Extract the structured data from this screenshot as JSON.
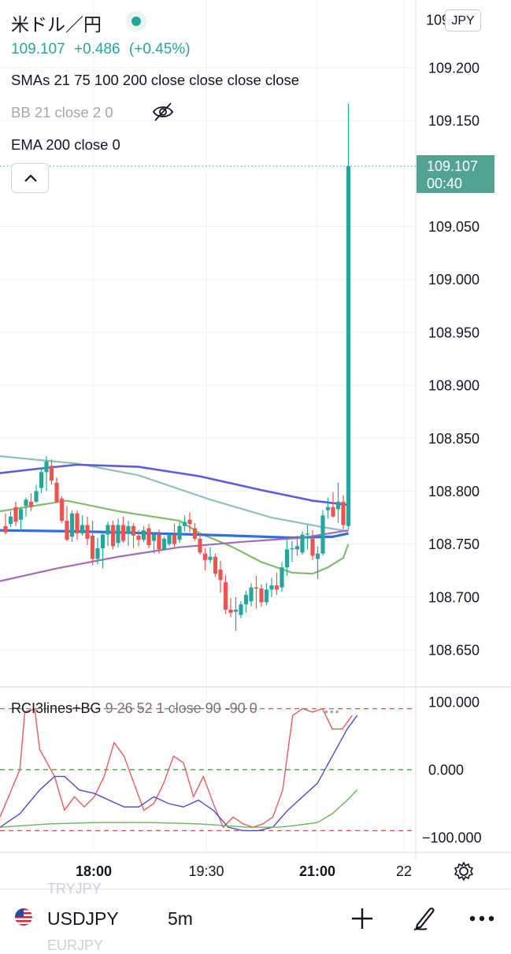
{
  "header": {
    "symbol_title": "米ドル／円",
    "price": "109.107",
    "change": "+0.486",
    "change_pct": "(+0.45%)",
    "currency_badge": "JPY"
  },
  "indicators": {
    "sma": "SMAs 21 75 100 200 close close close close",
    "bb": "BB 21 close 2 0",
    "ema": "EMA 200 close 0"
  },
  "rci_legend": {
    "name": "RCI3lines+BG",
    "params": "9 26 52 1 close 90 -90 0"
  },
  "last_price_tag": {
    "price": "109.107",
    "countdown": "00:40"
  },
  "bottom_bar": {
    "symbol": "USDJPY",
    "interval": "5m",
    "ghost_above": "TRYJPY",
    "ghost_below": "EURJPY"
  },
  "colors": {
    "up": "#26a69a",
    "down": "#ef5350",
    "sma_blue": "#2f6fde",
    "sma_purple": "#5b5ce0",
    "sma_teal": "#8fc1ba",
    "sma_green": "#82bb6c",
    "ema_magenta": "#a56aba",
    "rci_short": "#e55c5c",
    "rci_mid": "#4b4bd0",
    "rci_long": "#6fae5c"
  },
  "chart_data": [
    {
      "type": "candlestick",
      "title": "米ドル／円",
      "interval": "5m",
      "y_range": [
        108.625,
        109.225
      ],
      "y_ticks": [
        "108.650",
        "108.700",
        "108.750",
        "108.800",
        "108.850",
        "108.900",
        "108.950",
        "109.000",
        "109.050",
        "109.150",
        "109.200"
      ],
      "x_ticks": [
        "18:00",
        "19:30",
        "21:00",
        "22"
      ],
      "last_price": 109.107,
      "candles": [
        [
          108.767,
          108.779,
          108.759,
          108.761
        ],
        [
          108.769,
          108.781,
          108.766,
          108.776
        ],
        [
          108.785,
          108.79,
          108.767,
          108.771
        ],
        [
          108.773,
          108.785,
          108.762,
          108.783
        ],
        [
          108.786,
          108.794,
          108.776,
          108.792
        ],
        [
          108.79,
          108.798,
          108.781,
          108.785
        ],
        [
          108.79,
          108.806,
          108.789,
          108.8
        ],
        [
          108.803,
          108.822,
          108.798,
          108.818
        ],
        [
          108.818,
          108.833,
          108.8,
          108.828
        ],
        [
          108.824,
          108.83,
          108.806,
          108.81
        ],
        [
          108.808,
          108.813,
          108.789,
          108.79
        ],
        [
          108.793,
          108.795,
          108.77,
          108.772
        ],
        [
          108.772,
          108.786,
          108.753,
          108.754
        ],
        [
          108.757,
          108.782,
          108.752,
          108.779
        ],
        [
          108.779,
          108.782,
          108.754,
          108.76
        ],
        [
          108.76,
          108.777,
          108.758,
          108.768
        ],
        [
          108.768,
          108.776,
          108.749,
          108.755
        ],
        [
          108.758,
          108.772,
          108.73,
          108.736
        ],
        [
          108.736,
          108.756,
          108.731,
          108.746
        ],
        [
          108.746,
          108.761,
          108.727,
          108.759
        ],
        [
          108.759,
          108.771,
          108.748,
          108.768
        ],
        [
          108.768,
          108.772,
          108.745,
          108.748
        ],
        [
          108.751,
          108.774,
          108.747,
          108.768
        ],
        [
          108.768,
          108.776,
          108.751,
          108.753
        ],
        [
          108.76,
          108.772,
          108.748,
          108.767
        ],
        [
          108.767,
          108.77,
          108.746,
          108.758
        ],
        [
          108.758,
          108.763,
          108.748,
          108.754
        ],
        [
          108.754,
          108.767,
          108.752,
          108.763
        ],
        [
          108.765,
          108.769,
          108.746,
          108.749
        ],
        [
          108.753,
          108.761,
          108.741,
          108.759
        ],
        [
          108.759,
          108.764,
          108.741,
          108.745
        ],
        [
          108.745,
          108.757,
          108.744,
          108.755
        ],
        [
          108.75,
          108.76,
          108.748,
          108.759
        ],
        [
          108.759,
          108.769,
          108.747,
          108.75
        ],
        [
          108.754,
          108.771,
          108.751,
          108.767
        ],
        [
          108.767,
          108.777,
          108.762,
          108.771
        ],
        [
          108.773,
          108.78,
          108.761,
          108.769
        ],
        [
          108.765,
          108.77,
          108.753,
          108.755
        ],
        [
          108.755,
          108.76,
          108.74,
          108.742
        ],
        [
          108.741,
          108.746,
          108.725,
          108.735
        ],
        [
          108.735,
          108.747,
          108.732,
          108.738
        ],
        [
          108.738,
          108.741,
          108.719,
          108.722
        ],
        [
          108.726,
          108.734,
          108.704,
          108.716
        ],
        [
          108.714,
          108.721,
          108.684,
          108.688
        ],
        [
          108.688,
          108.699,
          108.681,
          108.685
        ],
        [
          108.686,
          108.7,
          108.668,
          108.688
        ],
        [
          108.683,
          108.696,
          108.68,
          108.693
        ],
        [
          108.693,
          108.706,
          108.685,
          108.702
        ],
        [
          108.696,
          108.713,
          108.691,
          108.709
        ],
        [
          108.709,
          108.72,
          108.689,
          108.708
        ],
        [
          108.708,
          108.712,
          108.691,
          108.695
        ],
        [
          108.695,
          108.713,
          108.692,
          108.707
        ],
        [
          108.707,
          108.718,
          108.7,
          108.711
        ],
        [
          108.711,
          108.723,
          108.702,
          108.707
        ],
        [
          108.709,
          108.733,
          108.705,
          108.728
        ],
        [
          108.728,
          108.755,
          108.72,
          108.745
        ],
        [
          108.745,
          108.753,
          108.733,
          108.746
        ],
        [
          108.745,
          108.758,
          108.739,
          108.748
        ],
        [
          108.742,
          108.762,
          108.74,
          108.759
        ],
        [
          108.759,
          108.768,
          108.745,
          108.76
        ],
        [
          108.755,
          108.763,
          108.735,
          108.739
        ],
        [
          108.736,
          108.748,
          108.717,
          108.741
        ],
        [
          108.741,
          108.782,
          108.739,
          108.777
        ],
        [
          108.782,
          108.794,
          108.774,
          108.785
        ],
        [
          108.785,
          108.799,
          108.775,
          108.776
        ],
        [
          108.783,
          108.808,
          108.77,
          108.79
        ],
        [
          108.79,
          108.796,
          108.764,
          108.768
        ],
        [
          108.767,
          109.166,
          108.764,
          109.107
        ]
      ],
      "series": [
        {
          "name": "SMA 21",
          "color": "#82bb6c",
          "values": [
            [
              0,
              108.781
            ],
            [
              12,
              108.791
            ],
            [
              22,
              108.781
            ],
            [
              34,
              108.772
            ],
            [
              38,
              108.76
            ],
            [
              44,
              108.748
            ],
            [
              50,
              108.733
            ],
            [
              56,
              108.723
            ],
            [
              60,
              108.722
            ],
            [
              63,
              108.728
            ],
            [
              66,
              108.737
            ],
            [
              67,
              108.75
            ]
          ]
        },
        {
          "name": "SMA 75",
          "color": "#8fc1ba",
          "values": [
            [
              0,
              108.833
            ],
            [
              14,
              108.826
            ],
            [
              26,
              108.815
            ],
            [
              40,
              108.792
            ],
            [
              52,
              108.775
            ],
            [
              62,
              108.766
            ],
            [
              67,
              108.762
            ]
          ]
        },
        {
          "name": "SMA 100",
          "color": "#5b5ce0",
          "values": [
            [
              0,
              108.817
            ],
            [
              6,
              108.821
            ],
            [
              14,
              108.825
            ],
            [
              26,
              108.823
            ],
            [
              38,
              108.814
            ],
            [
              50,
              108.801
            ],
            [
              60,
              108.791
            ],
            [
              67,
              108.787
            ]
          ]
        },
        {
          "name": "SMA 200",
          "color": "#2f6fde",
          "values": [
            [
              0,
              108.763
            ],
            [
              14,
              108.762
            ],
            [
              30,
              108.76
            ],
            [
              44,
              108.758
            ],
            [
              56,
              108.756
            ],
            [
              64,
              108.757
            ],
            [
              67,
              108.76
            ]
          ]
        },
        {
          "name": "EMA 200",
          "color": "#a56aba",
          "values": [
            [
              0,
              108.715
            ],
            [
              10,
              108.727
            ],
            [
              22,
              108.738
            ],
            [
              34,
              108.747
            ],
            [
              46,
              108.752
            ],
            [
              58,
              108.756
            ],
            [
              67,
              108.763
            ]
          ]
        }
      ]
    },
    {
      "type": "line",
      "title": "RCI3lines+BG",
      "y_range": [
        -110,
        110
      ],
      "y_ticks": [
        "100.000",
        "0.000",
        "−100.000"
      ],
      "levels": [
        90,
        0,
        -90
      ],
      "series": [
        {
          "name": "RCI 9",
          "color": "#e55c5c",
          "values": [
            [
              0,
              -70
            ],
            [
              4,
              0
            ],
            [
              5,
              85
            ],
            [
              7,
              90
            ],
            [
              8,
              30
            ],
            [
              11,
              -10
            ],
            [
              13,
              -60
            ],
            [
              15,
              -40
            ],
            [
              17,
              -55
            ],
            [
              19,
              -40
            ],
            [
              21,
              -10
            ],
            [
              23,
              40
            ],
            [
              25,
              20
            ],
            [
              27,
              -20
            ],
            [
              29,
              -60
            ],
            [
              31,
              -50
            ],
            [
              33,
              -20
            ],
            [
              35,
              20
            ],
            [
              37,
              10
            ],
            [
              39,
              -40
            ],
            [
              41,
              -10
            ],
            [
              43,
              -50
            ],
            [
              45,
              -85
            ],
            [
              47,
              -70
            ],
            [
              49,
              -80
            ],
            [
              51,
              -85
            ],
            [
              53,
              -80
            ],
            [
              55,
              -70
            ],
            [
              57,
              -30
            ],
            [
              59,
              80
            ],
            [
              61,
              90
            ],
            [
              63,
              85
            ],
            [
              65,
              90
            ],
            [
              67,
              60
            ],
            [
              69,
              60
            ],
            [
              71,
              80
            ]
          ]
        },
        {
          "name": "RCI 26",
          "color": "#4b4bd0",
          "values": [
            [
              0,
              -85
            ],
            [
              4,
              -65
            ],
            [
              8,
              -30
            ],
            [
              11,
              -10
            ],
            [
              13,
              -10
            ],
            [
              16,
              -30
            ],
            [
              19,
              -35
            ],
            [
              22,
              -45
            ],
            [
              25,
              -55
            ],
            [
              28,
              -55
            ],
            [
              31,
              -40
            ],
            [
              34,
              -50
            ],
            [
              37,
              -55
            ],
            [
              40,
              -45
            ],
            [
              43,
              -60
            ],
            [
              46,
              -85
            ],
            [
              49,
              -90
            ],
            [
              52,
              -90
            ],
            [
              55,
              -85
            ],
            [
              58,
              -60
            ],
            [
              61,
              -40
            ],
            [
              64,
              -20
            ],
            [
              67,
              20
            ],
            [
              70,
              60
            ],
            [
              72,
              80
            ]
          ]
        },
        {
          "name": "RCI 52",
          "color": "#6fae5c",
          "values": [
            [
              0,
              -85
            ],
            [
              10,
              -80
            ],
            [
              20,
              -78
            ],
            [
              30,
              -78
            ],
            [
              40,
              -80
            ],
            [
              50,
              -85
            ],
            [
              56,
              -85
            ],
            [
              60,
              -82
            ],
            [
              64,
              -78
            ],
            [
              67,
              -65
            ],
            [
              70,
              -45
            ],
            [
              72,
              -30
            ]
          ]
        }
      ]
    }
  ]
}
